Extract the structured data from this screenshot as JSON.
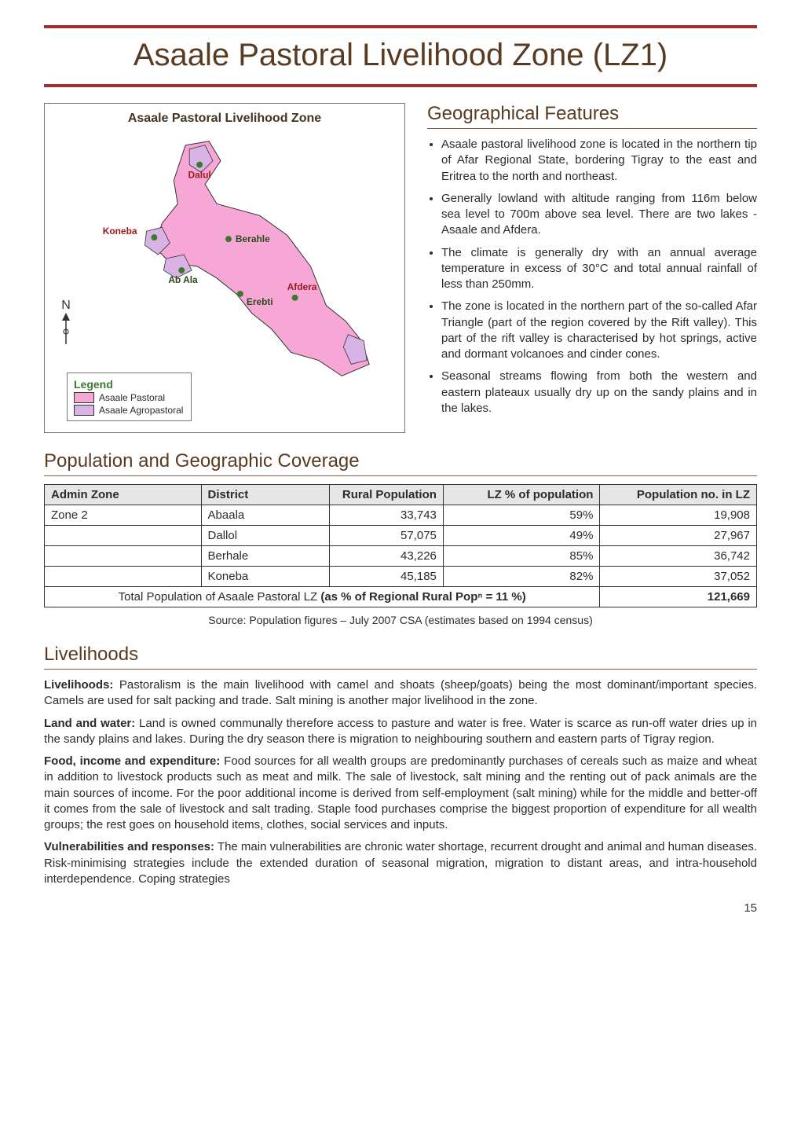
{
  "title": "Asaale Pastoral Livelihood Zone (LZ1)",
  "map": {
    "title": "Asaale Pastoral Livelihood Zone",
    "fill_color": "#f7a7d6",
    "agropastoral_color": "#d9b3e6",
    "town_color": "#3a7a2a",
    "labels": {
      "dalul": "Dalul",
      "koneba": "Koneba",
      "berahle": "Berahle",
      "abala": "Ab Ala",
      "erebti": "Erebti",
      "afdera": "Afdera"
    },
    "legend_title": "Legend",
    "legend_items": [
      {
        "label": "Asaale Pastoral",
        "color": "#f7a7d6"
      },
      {
        "label": "Asaale Agropastoral",
        "color": "#d9b3e6"
      }
    ],
    "north_label": "N"
  },
  "geo": {
    "heading": "Geographical Features",
    "bullets": [
      "Asaale pastoral livelihood zone is located in the northern tip of Afar Regional State, bordering Tigray to the east and Eritrea to the north and northeast.",
      "Generally lowland with altitude ranging from 116m below sea level to 700m above sea level. There are two lakes - Asaale and Afdera.",
      "The climate is generally dry with an annual average temperature in excess of 30°C and total annual rainfall of less than 250mm.",
      "The zone is located in the northern part of the so-called Afar Triangle (part of the region covered by the Rift valley).  This part of the rift valley is characterised by hot springs, active and dormant volcanoes and cinder cones.",
      "Seasonal streams flowing from both the western and eastern plateaux usually dry up on the sandy plains and in the lakes."
    ]
  },
  "pop": {
    "heading": "Population and Geographic Coverage",
    "columns": [
      "Admin Zone",
      "District",
      "Rural Population",
      "LZ % of population",
      "Population no. in LZ"
    ],
    "rows": [
      [
        "Zone 2",
        "Abaala",
        "33,743",
        "59%",
        "19,908"
      ],
      [
        "",
        "Dallol",
        "57,075",
        "49%",
        "27,967"
      ],
      [
        "",
        "Berhale",
        "43,226",
        "85%",
        "36,742"
      ],
      [
        "",
        "Koneba",
        "45,185",
        "82%",
        "37,052"
      ]
    ],
    "total_label": "Total Population of Asaale Pastoral LZ (as % of Regional Rural Popⁿ = 11 %)",
    "total_value": "121,669",
    "source": "Source:  Population figures – July 2007 CSA (estimates based on 1994 census)"
  },
  "liveli": {
    "heading": "Livelihoods",
    "paras": [
      {
        "lead": "Livelihoods:",
        "text": " Pastoralism is the main livelihood with camel and shoats (sheep/goats) being the most dominant/important species.  Camels are used for salt packing and trade.  Salt mining is another major livelihood in the zone."
      },
      {
        "lead": "Land and water:",
        "text": " Land is owned communally therefore access to pasture and water is free.  Water is scarce as run-off water dries up in the sandy plains and lakes.  During the dry season there is migration to neighbouring southern and eastern parts of Tigray region."
      },
      {
        "lead": "Food, income and expenditure:",
        "text": " Food sources for all wealth groups are predominantly purchases of cereals such as maize and wheat in addition to livestock products such as meat and milk.  The sale of livestock, salt mining and the renting out of pack animals are the main sources of income.  For the poor additional income is derived from self-employment (salt mining) while for the middle and better-off it comes from the sale of livestock and salt trading.  Staple food purchases comprise the biggest proportion of expenditure for all wealth groups; the rest goes on household items, clothes, social services and inputs."
      },
      {
        "lead": "Vulnerabilities and responses:",
        "text": " The main vulnerabilities are chronic water shortage, recurrent drought and animal and human diseases.  Risk-minimising strategies include the extended duration of seasonal migration, migration to distant areas, and intra-household interdependence.  Coping strategies"
      }
    ]
  },
  "page_number": "15",
  "colors": {
    "rule": "#a03030",
    "heading": "#593b22",
    "header_bg": "#e6e6e6"
  }
}
